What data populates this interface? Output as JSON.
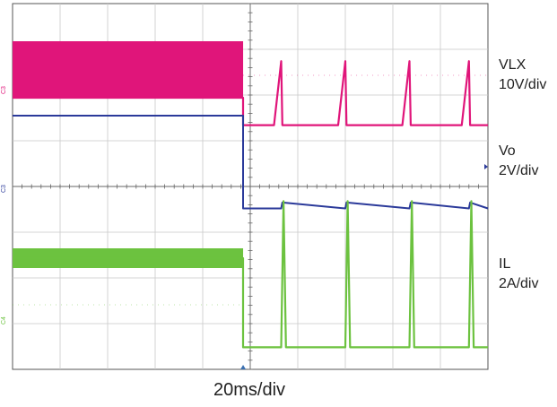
{
  "chart_data": {
    "type": "line",
    "title": "",
    "xlabel": "20ms/div",
    "ylabel": "",
    "x_units": "ms",
    "x_divisions": 10,
    "y_divisions": 8,
    "grid": true,
    "xlim": [
      0,
      200
    ],
    "trigger_time_ms": 97,
    "series": [
      {
        "key": "vlx",
        "name": "VLX",
        "scale": "10V/div",
        "color": "#e0157a",
        "marker": "C3",
        "points": [
          [
            0,
            0
          ],
          [
            97,
            0
          ],
          [
            97,
            -0.6
          ],
          [
            110,
            -0.6
          ],
          [
            113,
            0.8
          ],
          [
            113.5,
            -0.6
          ],
          [
            137,
            -0.6
          ],
          [
            140,
            0.8
          ],
          [
            140.5,
            -0.6
          ],
          [
            164,
            -0.6
          ],
          [
            167,
            0.8
          ],
          [
            167.5,
            -0.6
          ],
          [
            189,
            -0.6
          ],
          [
            192,
            0.8
          ],
          [
            192.5,
            -0.6
          ],
          [
            200,
            -0.6
          ]
        ],
        "band_ms": [
          0,
          97
        ]
      },
      {
        "key": "vo",
        "name": "Vo",
        "scale": "2V/div",
        "color": "#2b3a9a",
        "marker": "C3",
        "points": [
          [
            0,
            0
          ],
          [
            97,
            0
          ],
          [
            97,
            -2.03
          ],
          [
            113,
            -2.03
          ],
          [
            113.5,
            -1.9
          ],
          [
            140,
            -2.03
          ],
          [
            140.5,
            -1.9
          ],
          [
            167,
            -2.03
          ],
          [
            167.5,
            -1.9
          ],
          [
            192,
            -2.03
          ],
          [
            192.5,
            -1.9
          ],
          [
            200,
            -2.03
          ]
        ]
      },
      {
        "key": "il",
        "name": "IL",
        "scale": "2A/div",
        "color": "#6cc23f",
        "marker": "C4",
        "points": [
          [
            0,
            0
          ],
          [
            97,
            0
          ],
          [
            97,
            -1.95
          ],
          [
            113,
            -1.95
          ],
          [
            114,
            1.25
          ],
          [
            115,
            -1.95
          ],
          [
            140,
            -1.95
          ],
          [
            141,
            1.25
          ],
          [
            142,
            -1.95
          ],
          [
            167,
            -1.95
          ],
          [
            168,
            1.25
          ],
          [
            169,
            -1.95
          ],
          [
            192,
            -1.95
          ],
          [
            193,
            1.25
          ],
          [
            194,
            -1.95
          ],
          [
            200,
            -1.95
          ]
        ],
        "band_ms": [
          0,
          97
        ]
      }
    ]
  }
}
